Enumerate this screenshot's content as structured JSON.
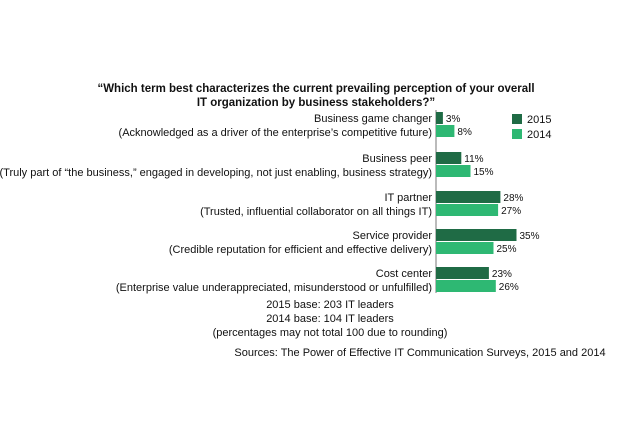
{
  "chart_data": {
    "type": "bar",
    "orientation": "horizontal",
    "title_lines": [
      "“Which term best characterizes the current prevailing perception of your overall",
      "IT organization by business stakeholders?”"
    ],
    "categories": [
      {
        "name": "Business game changer",
        "description": "(Acknowledged as a driver of the enterprise’s competitive future)"
      },
      {
        "name": "Business peer",
        "description": "(Truly part of “the business,” engaged in developing, not just enabling, business strategy)"
      },
      {
        "name": "IT partner",
        "description": "(Trusted, influential collaborator on all things IT)"
      },
      {
        "name": "Service provider",
        "description": "(Credible reputation for efficient and effective delivery)"
      },
      {
        "name": "Cost center",
        "description": "(Enterprise value underappreciated, misunderstood or unfulfilled)"
      }
    ],
    "series": [
      {
        "name": "2015",
        "color": "#1f6b45",
        "values": [
          3,
          11,
          28,
          35,
          23
        ]
      },
      {
        "name": "2014",
        "color": "#2eb873",
        "values": [
          8,
          15,
          27,
          25,
          26
        ]
      }
    ],
    "value_suffix": "%",
    "xlim": [
      0,
      35
    ],
    "legend_position": "top-right",
    "notes": [
      "2015 base: 203 IT leaders",
      "2014 base: 104 IT leaders",
      "(percentages may not total 100 due to rounding)"
    ],
    "source": "Sources: The Power of Effective IT Communication Surveys, 2015 and 2014"
  }
}
